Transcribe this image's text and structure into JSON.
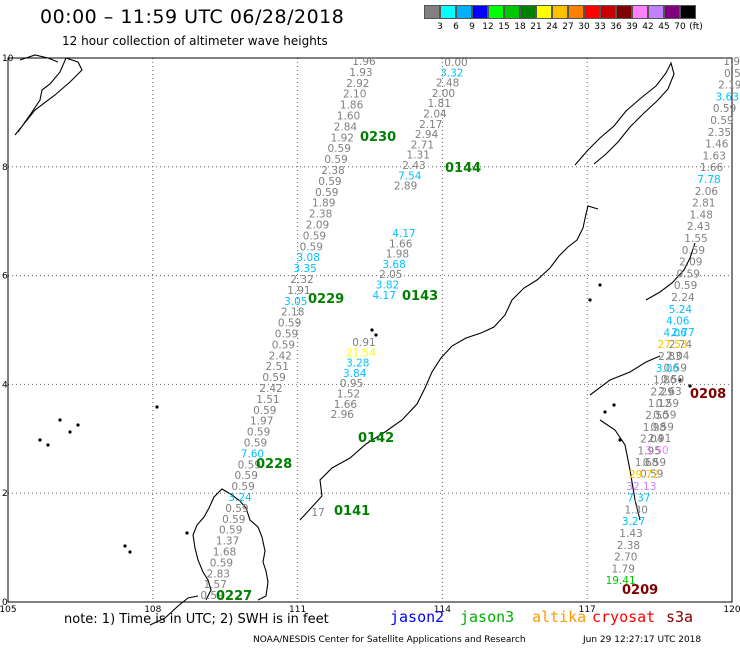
{
  "header": {
    "title": "00:00 – 11:59 UTC 06/28/2018",
    "subtitle": "12 hour collection of altimeter wave heights"
  },
  "color_scale": {
    "labels": [
      "3",
      "6",
      "9",
      "12",
      "15",
      "18",
      "21",
      "24",
      "27",
      "30",
      "33",
      "36",
      "39",
      "42",
      "45",
      "70",
      "(ft)"
    ],
    "colors": [
      "#808080",
      "#00ffff",
      "#00b0ff",
      "#0000ff",
      "#00ff00",
      "#00c800",
      "#008000",
      "#ffff00",
      "#ffc000",
      "#ff8000",
      "#ff0000",
      "#c80000",
      "#800000",
      "#ff80ff",
      "#c080ff",
      "#800080",
      "#000000"
    ]
  },
  "axes": {
    "lon_labels": [
      "105",
      "108",
      "111",
      "114",
      "117",
      "120"
    ],
    "lat_labels": [
      "0",
      "2",
      "4",
      "6",
      "8",
      "10"
    ]
  },
  "tracks": [
    {
      "id": "0230",
      "pass_color": "#008000",
      "label_color": "#808080",
      "values": [
        "1.96",
        "1.93",
        "2.92",
        "2.10",
        "1.86",
        "1.60",
        "2.84",
        "1.92",
        "0.59",
        "0.59",
        "2.38",
        "0.59",
        "0.59",
        "1.89",
        "2.38",
        "2.09",
        "0.59",
        "0.59",
        "3.08",
        "3.35",
        "2.32",
        "1.91",
        "3.05",
        "2.18",
        "0.59",
        "0.59",
        "0.59",
        "2.42",
        "2.51",
        "0.59",
        "2.42",
        "1.51",
        "0.59",
        "1.97",
        "0.59",
        "0.59",
        "7.60",
        "0.59",
        "0.59",
        "0.59",
        "3.24",
        "0.59",
        "0.59",
        "0.59",
        "1.37",
        "1.68",
        "0.59",
        "2.83",
        "1.57",
        "0.59"
      ],
      "colored": {
        "3.08": "#00c0ff",
        "3.35": "#00c0ff",
        "3.05": "#00c0ff",
        "7.60": "#00c0ff",
        "3.24": "#00c0ff"
      }
    },
    {
      "id": "0144",
      "pass_color": "#008000",
      "label_color": "#808080",
      "values": [
        "0.00",
        "3.32",
        "2.48",
        "2.00",
        "1.81",
        "2.04",
        "2.17",
        "2.94",
        "2.71",
        "1.31",
        "2.43",
        "7.54",
        "2.89"
      ],
      "colored": {
        "3.32": "#00c0ff",
        "7.54": "#00c0ff"
      }
    },
    {
      "id": "0143",
      "pass_color": "#008000",
      "label_color": "#808080",
      "values": [
        "4.17",
        "1.66",
        "1.98",
        "3.68",
        "2.05",
        "3.82",
        "4.17"
      ],
      "colored": {
        "4.17": "#00c0ff",
        "3.68": "#00c0ff",
        "3.82": "#00c0ff"
      }
    },
    {
      "id": "0142",
      "pass_color": "#008000",
      "label_color": "#808080",
      "values": [
        "0.91",
        "21.54",
        "3.28",
        "3.84",
        "0.95",
        "1.52",
        "1.66",
        "2.96"
      ],
      "colored": {
        "21.54": "#ffff00",
        "3.28": "#00c0ff",
        "3.84": "#00c0ff"
      }
    },
    {
      "id": "0141",
      "pass_color": "#008000",
      "label_color": "#808080",
      "values": [
        "17"
      ],
      "colored": {}
    },
    {
      "id": "0229",
      "pass_color": "#008000"
    },
    {
      "id": "0228",
      "pass_color": "#008000"
    },
    {
      "id": "0227",
      "pass_color": "#008000"
    },
    {
      "id": "0208",
      "pass_color": "#800000",
      "label_color": "#808080",
      "values": [
        "2.77",
        "2.74",
        "2.04",
        "0.59",
        "0.59",
        "2.63",
        "0.59",
        "0.59",
        "0.59",
        "2.91",
        "3.50",
        "0.59",
        "0.59"
      ],
      "colored": {
        "2.77": "#00c0ff",
        "3.50": "#ff80ff"
      }
    },
    {
      "id": "0209",
      "pass_color": "#800000",
      "label_color": "#808080",
      "values": [
        "1.98",
        "0.5",
        "2.19",
        "3.63",
        "0.59",
        "0.59",
        "2.35",
        "1.46",
        "1.63",
        "1.66",
        "7.78",
        "2.06",
        "2.81",
        "1.48",
        "2.43",
        "1.55",
        "0.59",
        "2.09",
        "0.59",
        "0.59",
        "2.24",
        "5.24",
        "4.06",
        "4.06",
        "27.53",
        "2.83",
        "3.06",
        "1.86",
        "2.29",
        "1.12",
        "2.50",
        "1.98",
        "2.04",
        "1.95",
        "1.68",
        "29.72",
        "32.13",
        "7.37",
        "1.30",
        "3.27",
        "1.43",
        "2.38",
        "2.70",
        "1.79",
        "19.41"
      ],
      "colored": {
        "3.63": "#00c0ff",
        "7.78": "#00c0ff",
        "5.24": "#00c0ff",
        "4.06": "#00c0ff",
        "3.06": "#00c0ff",
        "7.37": "#00c0ff",
        "3.27": "#00c0ff",
        "27.53": "#ffc000",
        "29.72": "#ffc000",
        "32.13": "#c080ff",
        "19.41": "#00c800"
      }
    }
  ],
  "footer": {
    "note": "note: 1) Time is in UTC; 2) SWH is in feet",
    "legend": [
      {
        "name": "jason2",
        "color": "#0000ff"
      },
      {
        "name": "jason3",
        "color": "#00b000"
      },
      {
        "name": "altika",
        "color": "#ff9900"
      },
      {
        "name": "cryosat",
        "color": "#ff0000"
      },
      {
        "name": "s3a",
        "color": "#800000"
      }
    ],
    "credit": "NOAA/NESDIS Center for Satellite Applications and Research",
    "timestamp": "Jun 29 12:27:17 UTC 2018"
  }
}
